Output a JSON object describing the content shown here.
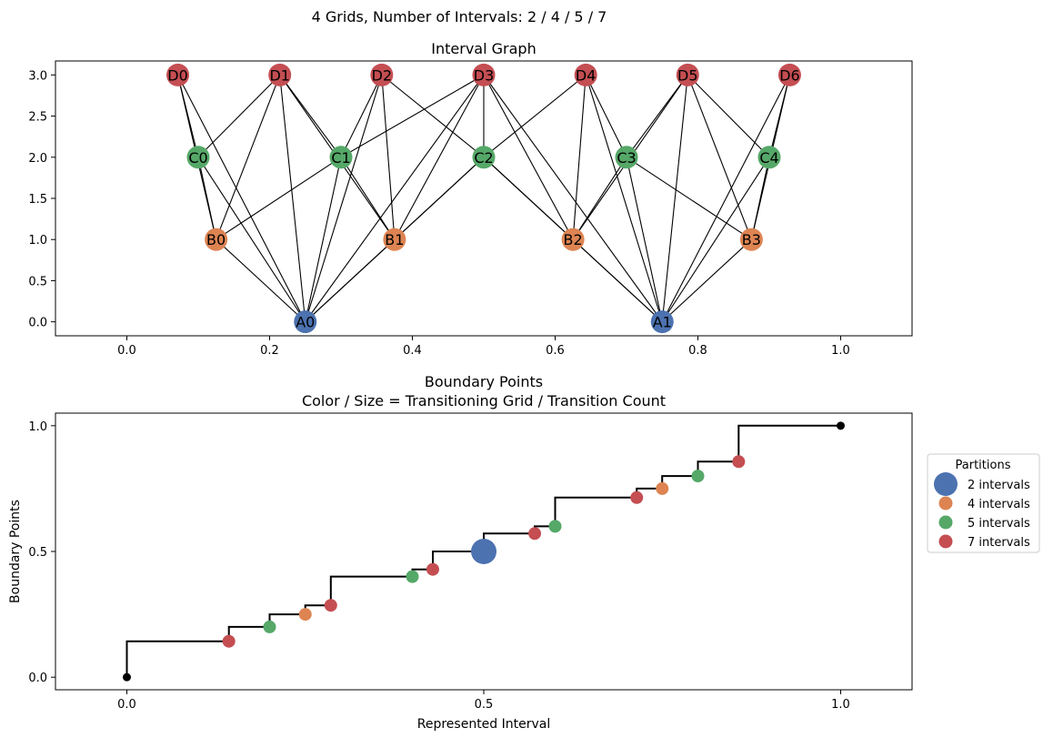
{
  "figure": {
    "suptitle": "4 Grids, Number of Intervals: 2 / 4 / 5 / 7"
  },
  "colors": {
    "grid_2": "#4c72b0",
    "grid_4": "#dd8452",
    "grid_5": "#55a868",
    "grid_7": "#c44e52",
    "endpoint": "#000000",
    "edge": "#000000"
  },
  "chart_data": [
    {
      "type": "network",
      "title": "Interval Graph",
      "xlabel": "",
      "ylabel": "",
      "xlim": [
        -0.1,
        1.1
      ],
      "ylim": [
        -0.17,
        3.17
      ],
      "xticks": [
        0.0,
        0.2,
        0.4,
        0.6,
        0.8,
        1.0
      ],
      "xtick_labels": [
        "0.0",
        "0.2",
        "0.4",
        "0.6",
        "0.8",
        "1.0"
      ],
      "yticks": [
        0.0,
        0.5,
        1.0,
        1.5,
        2.0,
        2.5,
        3.0
      ],
      "ytick_labels": [
        "0.0",
        "0.5",
        "1.0",
        "1.5",
        "2.0",
        "2.5",
        "3.0"
      ],
      "nodes": [
        {
          "id": "A0",
          "x": 0.25,
          "y": 0,
          "grid": "grid_2"
        },
        {
          "id": "A1",
          "x": 0.75,
          "y": 0,
          "grid": "grid_2"
        },
        {
          "id": "B0",
          "x": 0.125,
          "y": 1,
          "grid": "grid_4"
        },
        {
          "id": "B1",
          "x": 0.375,
          "y": 1,
          "grid": "grid_4"
        },
        {
          "id": "B2",
          "x": 0.625,
          "y": 1,
          "grid": "grid_4"
        },
        {
          "id": "B3",
          "x": 0.875,
          "y": 1,
          "grid": "grid_4"
        },
        {
          "id": "C0",
          "x": 0.1,
          "y": 2,
          "grid": "grid_5"
        },
        {
          "id": "C1",
          "x": 0.3,
          "y": 2,
          "grid": "grid_5"
        },
        {
          "id": "C2",
          "x": 0.5,
          "y": 2,
          "grid": "grid_5"
        },
        {
          "id": "C3",
          "x": 0.7,
          "y": 2,
          "grid": "grid_5"
        },
        {
          "id": "C4",
          "x": 0.9,
          "y": 2,
          "grid": "grid_5"
        },
        {
          "id": "D0",
          "x": 0.0714,
          "y": 3,
          "grid": "grid_7"
        },
        {
          "id": "D1",
          "x": 0.2143,
          "y": 3,
          "grid": "grid_7"
        },
        {
          "id": "D2",
          "x": 0.3571,
          "y": 3,
          "grid": "grid_7"
        },
        {
          "id": "D3",
          "x": 0.5,
          "y": 3,
          "grid": "grid_7"
        },
        {
          "id": "D4",
          "x": 0.6429,
          "y": 3,
          "grid": "grid_7"
        },
        {
          "id": "D5",
          "x": 0.7857,
          "y": 3,
          "grid": "grid_7"
        },
        {
          "id": "D6",
          "x": 0.9286,
          "y": 3,
          "grid": "grid_7"
        }
      ],
      "edges": [
        [
          "A0",
          "B0"
        ],
        [
          "A0",
          "B1"
        ],
        [
          "A0",
          "C0"
        ],
        [
          "A0",
          "C1"
        ],
        [
          "A0",
          "C2"
        ],
        [
          "A0",
          "D0"
        ],
        [
          "A0",
          "D1"
        ],
        [
          "A0",
          "D2"
        ],
        [
          "A0",
          "D3"
        ],
        [
          "A1",
          "B2"
        ],
        [
          "A1",
          "B3"
        ],
        [
          "A1",
          "C2"
        ],
        [
          "A1",
          "C3"
        ],
        [
          "A1",
          "C4"
        ],
        [
          "A1",
          "D3"
        ],
        [
          "A1",
          "D4"
        ],
        [
          "A1",
          "D5"
        ],
        [
          "A1",
          "D6"
        ],
        [
          "B0",
          "C0"
        ],
        [
          "B0",
          "C1"
        ],
        [
          "B0",
          "D0"
        ],
        [
          "B0",
          "D1"
        ],
        [
          "B1",
          "C1"
        ],
        [
          "B1",
          "C2"
        ],
        [
          "B1",
          "D1"
        ],
        [
          "B1",
          "D2"
        ],
        [
          "B1",
          "D3"
        ],
        [
          "B2",
          "C2"
        ],
        [
          "B2",
          "C3"
        ],
        [
          "B2",
          "D3"
        ],
        [
          "B2",
          "D4"
        ],
        [
          "B2",
          "D5"
        ],
        [
          "B3",
          "C3"
        ],
        [
          "B3",
          "C4"
        ],
        [
          "B3",
          "D5"
        ],
        [
          "B3",
          "D6"
        ],
        [
          "C0",
          "D0"
        ],
        [
          "C0",
          "D1"
        ],
        [
          "C1",
          "D1"
        ],
        [
          "C1",
          "D2"
        ],
        [
          "C1",
          "D3"
        ],
        [
          "C2",
          "D2"
        ],
        [
          "C2",
          "D3"
        ],
        [
          "C2",
          "D4"
        ],
        [
          "C3",
          "D4"
        ],
        [
          "C3",
          "D5"
        ],
        [
          "C4",
          "D5"
        ],
        [
          "C4",
          "D6"
        ]
      ]
    },
    {
      "type": "step+scatter",
      "title": "Boundary Points",
      "subtitle": "Color / Size = Transitioning Grid / Transition Count",
      "xlabel": "Represented Interval",
      "ylabel": "Boundary Points",
      "xlim": [
        -0.1,
        1.1
      ],
      "ylim": [
        -0.05,
        1.05
      ],
      "xticks": [
        0.0,
        0.5,
        1.0
      ],
      "xtick_labels": [
        "0.0",
        "0.5",
        "1.0"
      ],
      "yticks": [
        0.0,
        0.5,
        1.0
      ],
      "ytick_labels": [
        "0.0",
        "0.5",
        "1.0"
      ],
      "steps": [
        [
          0.0,
          0.0
        ],
        [
          0.0,
          0.1429
        ],
        [
          0.1429,
          0.1429
        ],
        [
          0.1429,
          0.2
        ],
        [
          0.2,
          0.2
        ],
        [
          0.2,
          0.25
        ],
        [
          0.25,
          0.25
        ],
        [
          0.25,
          0.2857
        ],
        [
          0.2857,
          0.2857
        ],
        [
          0.2857,
          0.4
        ],
        [
          0.4,
          0.4
        ],
        [
          0.4,
          0.4286
        ],
        [
          0.4286,
          0.4286
        ],
        [
          0.4286,
          0.5
        ],
        [
          0.5,
          0.5
        ],
        [
          0.5,
          0.5714
        ],
        [
          0.5714,
          0.5714
        ],
        [
          0.5714,
          0.6
        ],
        [
          0.6,
          0.6
        ],
        [
          0.6,
          0.7143
        ],
        [
          0.7143,
          0.7143
        ],
        [
          0.7143,
          0.75
        ],
        [
          0.75,
          0.75
        ],
        [
          0.75,
          0.8
        ],
        [
          0.8,
          0.8
        ],
        [
          0.8,
          0.8571
        ],
        [
          0.8571,
          0.8571
        ],
        [
          0.8571,
          1.0
        ],
        [
          1.0,
          1.0
        ]
      ],
      "points": [
        {
          "x": 0.0,
          "y": 0.0,
          "grid": "endpoint",
          "count": 0
        },
        {
          "x": 0.1429,
          "y": 0.1429,
          "grid": "grid_7",
          "count": 1
        },
        {
          "x": 0.2,
          "y": 0.2,
          "grid": "grid_5",
          "count": 1
        },
        {
          "x": 0.25,
          "y": 0.25,
          "grid": "grid_4",
          "count": 1
        },
        {
          "x": 0.2857,
          "y": 0.2857,
          "grid": "grid_7",
          "count": 1
        },
        {
          "x": 0.4,
          "y": 0.4,
          "grid": "grid_5",
          "count": 1
        },
        {
          "x": 0.4286,
          "y": 0.4286,
          "grid": "grid_7",
          "count": 1
        },
        {
          "x": 0.5,
          "y": 0.5,
          "grid": "grid_2",
          "count": 4
        },
        {
          "x": 0.5714,
          "y": 0.5714,
          "grid": "grid_7",
          "count": 1
        },
        {
          "x": 0.6,
          "y": 0.6,
          "grid": "grid_5",
          "count": 1
        },
        {
          "x": 0.7143,
          "y": 0.7143,
          "grid": "grid_7",
          "count": 1
        },
        {
          "x": 0.75,
          "y": 0.75,
          "grid": "grid_4",
          "count": 1
        },
        {
          "x": 0.8,
          "y": 0.8,
          "grid": "grid_5",
          "count": 1
        },
        {
          "x": 0.8571,
          "y": 0.8571,
          "grid": "grid_7",
          "count": 1
        },
        {
          "x": 1.0,
          "y": 1.0,
          "grid": "endpoint",
          "count": 0
        }
      ],
      "legend": {
        "title": "Partitions",
        "placement": "right, outside",
        "entries": [
          {
            "label": "2 intervals",
            "grid": "grid_2"
          },
          {
            "label": "4 intervals",
            "grid": "grid_4"
          },
          {
            "label": "5 intervals",
            "grid": "grid_5"
          },
          {
            "label": "7 intervals",
            "grid": "grid_7"
          }
        ]
      }
    }
  ]
}
